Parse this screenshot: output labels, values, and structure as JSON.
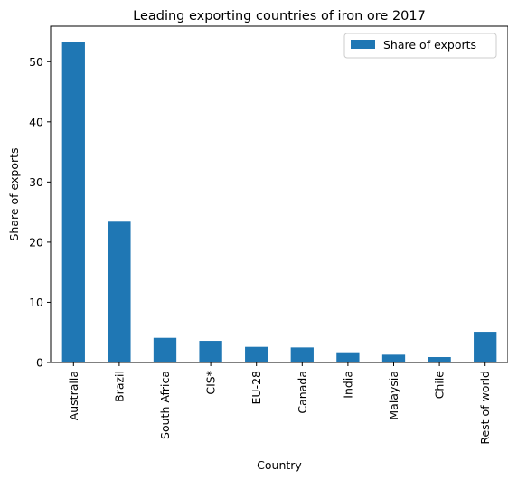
{
  "chart_data": {
    "type": "bar",
    "title": "Leading exporting countries of iron ore 2017",
    "xlabel": "Country",
    "ylabel": "Share of exports",
    "categories": [
      "Australia",
      "Brazil",
      "South Africa",
      "CIS*",
      "EU-28",
      "Canada",
      "India",
      "Malaysia",
      "Chile",
      "Rest of world"
    ],
    "series": [
      {
        "name": "Share of exports",
        "values": [
          53.2,
          23.4,
          4.1,
          3.6,
          2.6,
          2.5,
          1.7,
          1.3,
          0.9,
          5.1
        ],
        "color": "#1f77b4"
      }
    ],
    "ylim": [
      0,
      55.9
    ],
    "yticks": [
      0,
      10,
      20,
      30,
      40,
      50
    ],
    "grid": false,
    "legend_position": "top-right"
  }
}
